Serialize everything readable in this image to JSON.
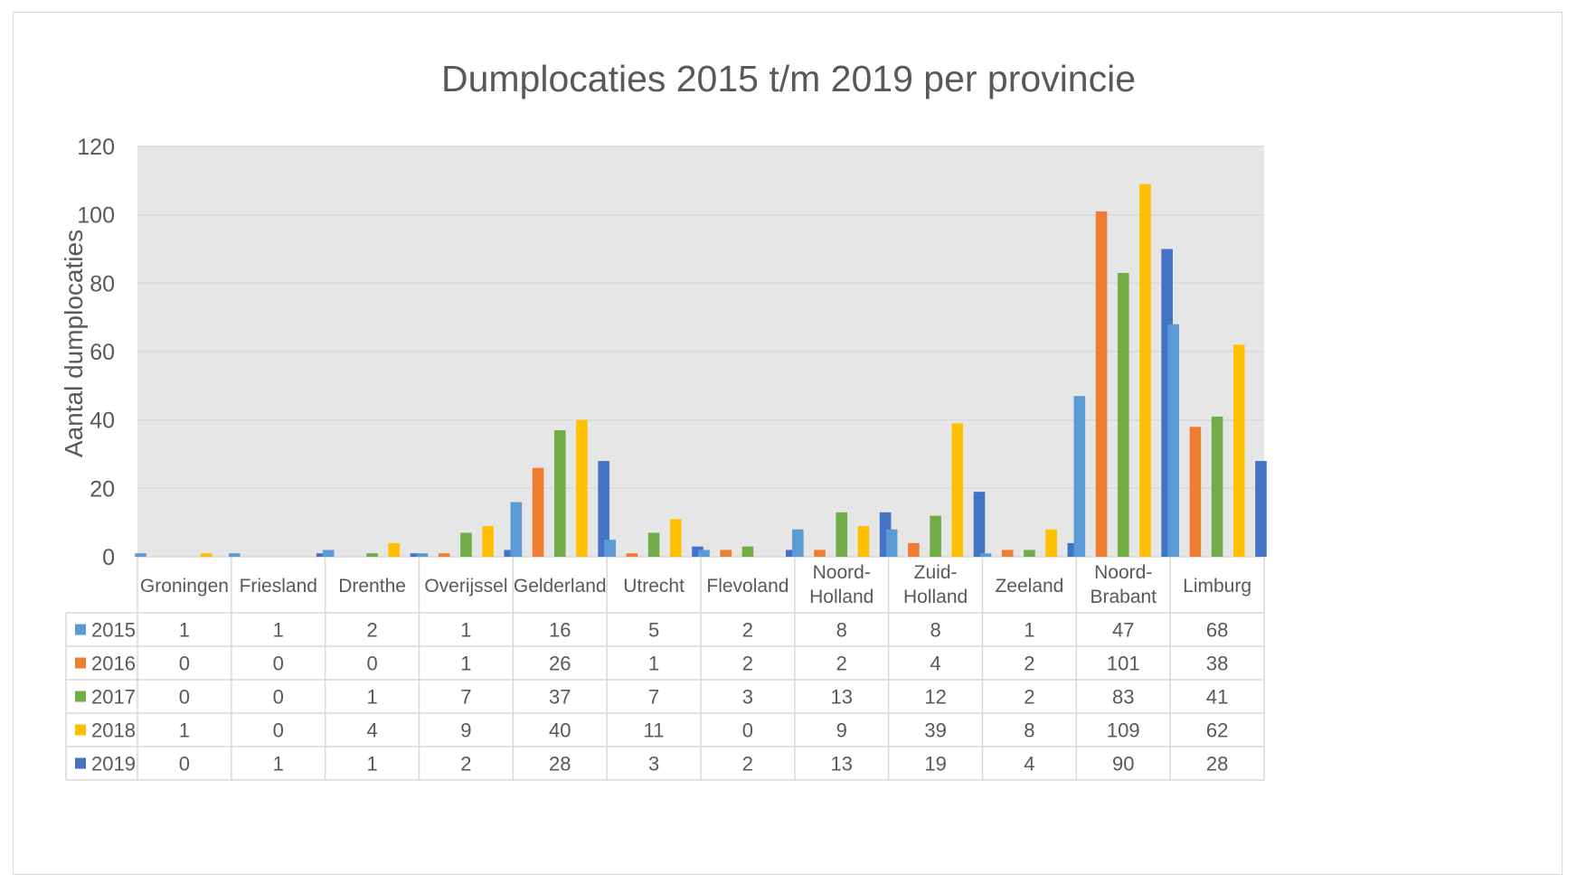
{
  "chart_data": {
    "type": "bar",
    "title": "Dumplocaties 2015 t/m 2019 per provincie",
    "ylabel": "Aantal dumplocaties",
    "xlabel": "",
    "ylim": [
      0,
      120
    ],
    "yticks": [
      "0",
      "20",
      "40",
      "60",
      "80",
      "100",
      "120"
    ],
    "grid": true,
    "legend": "data table below chart",
    "categories": [
      "Groningen",
      "Friesland",
      "Drenthe",
      "Overijssel",
      "Gelderland",
      "Utrecht",
      "Flevoland",
      "Noord-Holland",
      "Zuid-Holland",
      "Zeeland",
      "Noord-Brabant",
      "Limburg"
    ],
    "series": [
      {
        "name": "2015",
        "color": "#5B9BD5",
        "values": [
          1,
          1,
          2,
          1,
          16,
          5,
          2,
          8,
          8,
          1,
          47,
          68
        ]
      },
      {
        "name": "2016",
        "color": "#ED7D31",
        "values": [
          0,
          0,
          0,
          1,
          26,
          1,
          2,
          2,
          4,
          2,
          101,
          38
        ]
      },
      {
        "name": "2017",
        "color": "#70AD47",
        "values": [
          0,
          0,
          1,
          7,
          37,
          7,
          3,
          13,
          12,
          2,
          83,
          41
        ]
      },
      {
        "name": "2018",
        "color": "#FFC000",
        "values": [
          1,
          0,
          4,
          9,
          40,
          11,
          0,
          9,
          39,
          8,
          109,
          62
        ]
      },
      {
        "name": "2019",
        "color": "#4472C4",
        "values": [
          0,
          1,
          1,
          2,
          28,
          3,
          2,
          13,
          19,
          4,
          90,
          28
        ]
      }
    ]
  }
}
